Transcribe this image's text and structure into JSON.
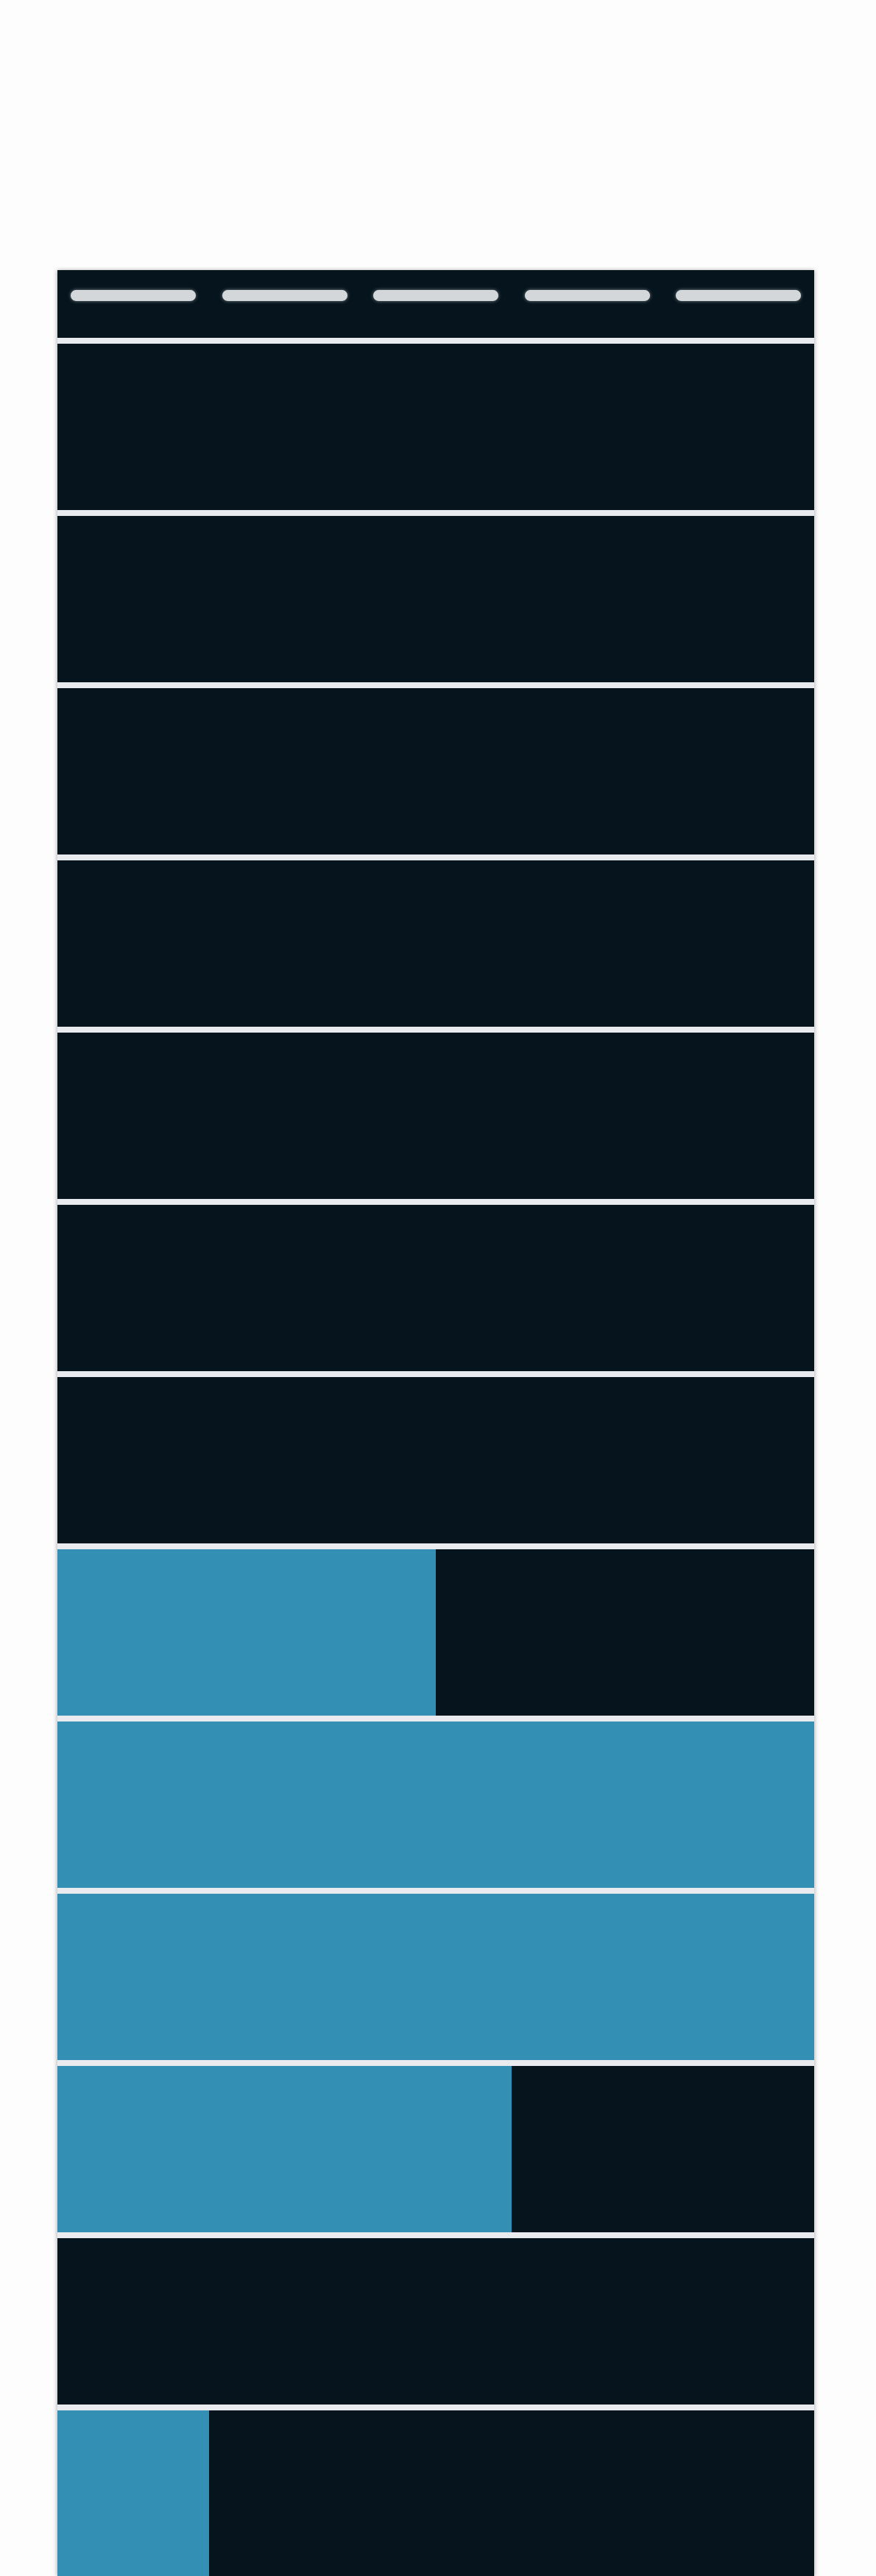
{
  "meter": {
    "header_marks": 5,
    "rows": [
      {
        "fill": 0.0
      },
      {
        "fill": 0.0
      },
      {
        "fill": 0.0
      },
      {
        "fill": 0.0
      },
      {
        "fill": 0.0
      },
      {
        "fill": 0.0
      },
      {
        "fill": 0.0
      },
      {
        "fill": 0.5
      },
      {
        "fill": 1.0
      },
      {
        "fill": 1.0
      },
      {
        "fill": 0.6
      },
      {
        "fill": 0.0
      },
      {
        "fill": 0.2
      }
    ]
  },
  "colors": {
    "background": "#fdfdfd",
    "row_background": "#06151d",
    "fill": "#338fb3",
    "separator": "#e9ebee",
    "header_mark": "#d3d7da"
  }
}
